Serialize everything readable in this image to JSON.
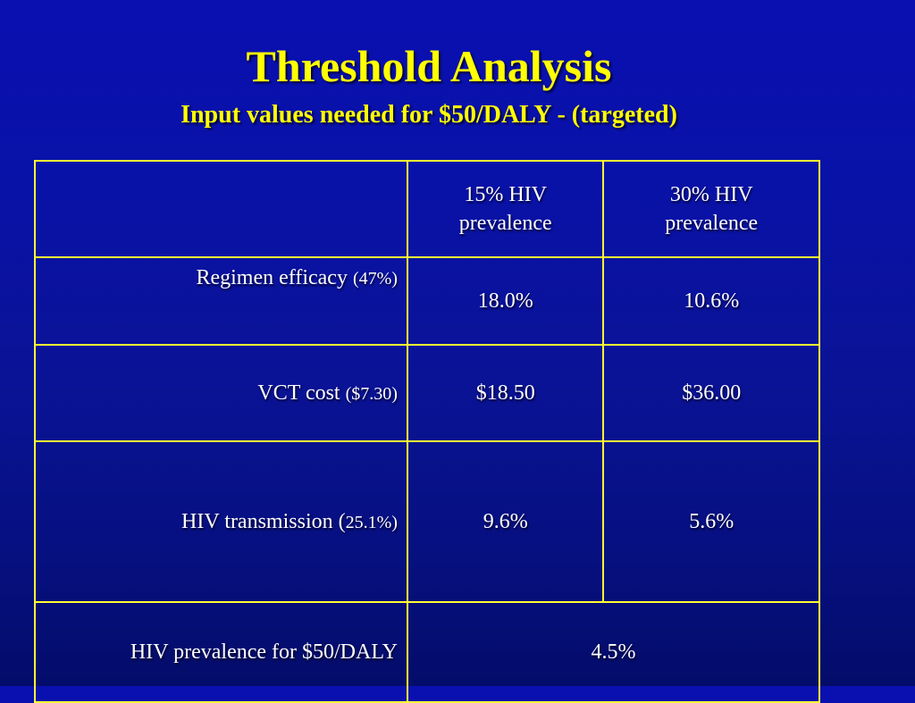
{
  "slide": {
    "title": "Threshold Analysis",
    "subtitle": "Input values needed for $50/DALY - (targeted)"
  },
  "table": {
    "header": {
      "corner": "",
      "col1_line1": "15% HIV",
      "col1_line2": "prevalence",
      "col2_line1": "30% HIV",
      "col2_line2": "prevalence"
    },
    "rows": [
      {
        "label": "Regimen efficacy",
        "base": "(47%)",
        "v15": "18.0%",
        "v30": "10.6%"
      },
      {
        "label": "VCT cost",
        "base": "($7.30)",
        "v15": "$18.50",
        "v30": "$36.00"
      },
      {
        "label": "HIV transmission (",
        "base": "25.1%)",
        "v15": "9.6%",
        "v30": "5.6%"
      },
      {
        "label": "HIV prevalence for $50/DALY",
        "value": "4.5%"
      }
    ]
  },
  "colors": {
    "background": "#0a12a0",
    "title": "#ffff00",
    "border": "#ffff33",
    "text": "#ffffff"
  }
}
